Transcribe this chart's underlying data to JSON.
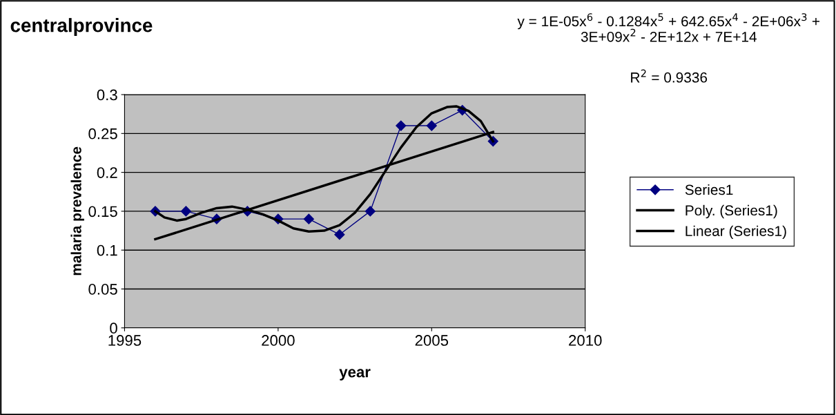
{
  "chart_data": {
    "type": "line",
    "title": "centralprovince",
    "xlabel": "year",
    "ylabel": "malaria prevalence",
    "annotations": [
      "y = 1E-05x$^{6}$ - 0.1284x$^{5}$ + 642.65x$^{4}$ - 2E+06x$^{3}$ + 3E+09x$^{2}$ - 2E+12x + 7E+14",
      "R$^{2}$ = 0.9336"
    ],
    "x": [
      1996,
      1997,
      1998,
      1999,
      2000,
      2001,
      2002,
      2003,
      2004,
      2005,
      2006,
      2007
    ],
    "series": [
      {
        "name": "Series1",
        "color": "#000080",
        "marker": "diamond",
        "values": [
          0.15,
          0.15,
          0.14,
          0.15,
          0.14,
          0.14,
          0.12,
          0.15,
          0.26,
          0.26,
          0.28,
          0.24
        ]
      },
      {
        "name": "Poly. (Series1)",
        "color": "#000000",
        "marker": "none",
        "x": [
          1996,
          1996.3,
          1996.7,
          1997,
          1997.5,
          1998,
          1998.5,
          1999,
          1999.5,
          2000,
          2000.5,
          2001,
          2001.5,
          2002,
          2002.5,
          2003,
          2003.5,
          2004,
          2004.5,
          2005,
          2005.5,
          2005.8,
          2006.2,
          2006.6,
          2007
        ],
        "values": [
          0.15,
          0.142,
          0.138,
          0.14,
          0.148,
          0.154,
          0.156,
          0.152,
          0.146,
          0.138,
          0.128,
          0.124,
          0.125,
          0.132,
          0.148,
          0.172,
          0.202,
          0.232,
          0.258,
          0.276,
          0.284,
          0.285,
          0.279,
          0.266,
          0.24
        ]
      },
      {
        "name": "Linear (Series1)",
        "color": "#000000",
        "marker": "none",
        "x": [
          1996,
          2007
        ],
        "values": [
          0.114,
          0.252
        ]
      }
    ],
    "xlim": [
      1995,
      2010
    ],
    "xticks": [
      1995,
      2000,
      2005,
      2010
    ],
    "ylim": [
      0,
      0.3
    ],
    "yticks": [
      0,
      0.05,
      0.1,
      0.15,
      0.2,
      0.25,
      0.3
    ],
    "grid": "y",
    "legend": "right",
    "line_style": "solid"
  }
}
